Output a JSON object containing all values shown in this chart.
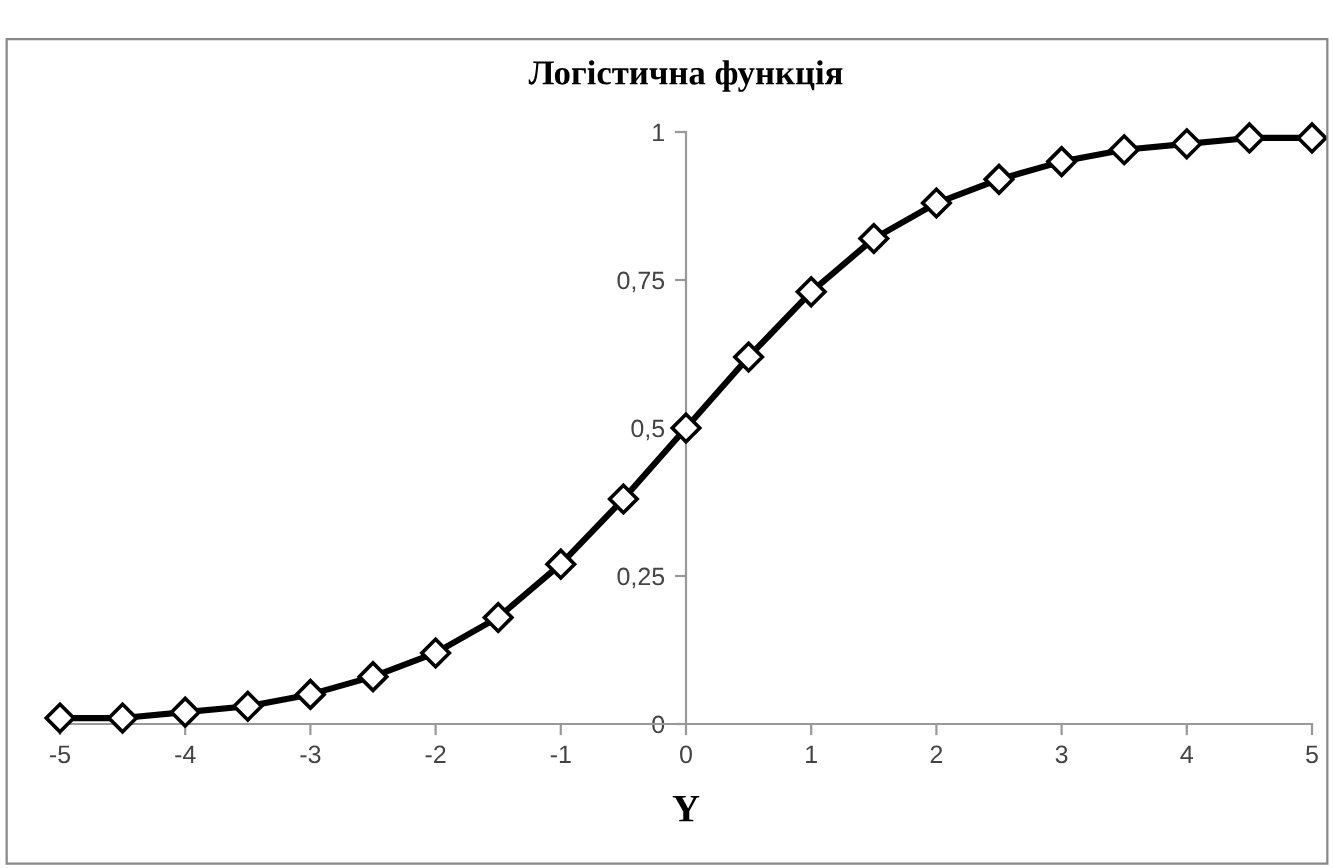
{
  "chart_data": {
    "type": "line",
    "title": "Логістична функція",
    "xlabel": "Y",
    "x": [
      -5,
      -4.5,
      -4,
      -3.5,
      -3,
      -2.5,
      -2,
      -1.5,
      -1,
      -0.5,
      0,
      0.5,
      1,
      1.5,
      2,
      2.5,
      3,
      3.5,
      4,
      4.5,
      5
    ],
    "series": [
      {
        "color": "#000000",
        "values": [
          0.01,
          0.01,
          0.02,
          0.03,
          0.05,
          0.08,
          0.12,
          0.18,
          0.27,
          0.38,
          0.5,
          0.62,
          0.73,
          0.82,
          0.88,
          0.92,
          0.95,
          0.97,
          0.98,
          0.99,
          0.99
        ]
      }
    ],
    "xlim": [
      -5,
      5
    ],
    "xticks": [
      -5,
      -4,
      -3,
      -2,
      -1,
      0,
      1,
      2,
      3,
      4,
      5
    ],
    "ylim": [
      0,
      1
    ],
    "yticks": [
      0,
      {
        "value": 0.25,
        "label": "0,25"
      },
      {
        "value": 0.5,
        "label": "0,5"
      },
      {
        "value": 0.75,
        "label": "0,75"
      },
      1
    ],
    "marker": "diamond",
    "line_style": "solid",
    "grid": false,
    "legend": false
  }
}
